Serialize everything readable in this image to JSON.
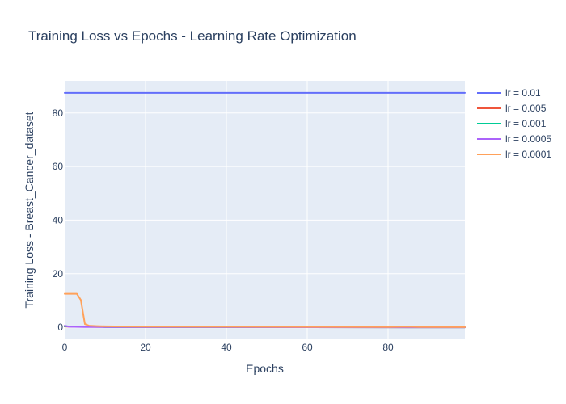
{
  "chart_data": {
    "type": "line",
    "title": "Training Loss vs Epochs - Learning Rate Optimization",
    "xlabel": "Epochs",
    "ylabel": "Training Loss - Breast_Cancer_dataset",
    "xlim": [
      0,
      99
    ],
    "ylim": [
      -4.5,
      92
    ],
    "xticks": [
      0,
      20,
      40,
      60,
      80
    ],
    "yticks": [
      0,
      20,
      40,
      60,
      80
    ],
    "grid": true,
    "legend_position": "top-right",
    "series": [
      {
        "name": "lr = 0.01",
        "color": "#636efa",
        "points": [
          [
            0,
            87.5
          ],
          [
            99,
            87.5
          ]
        ]
      },
      {
        "name": "lr = 0.005",
        "color": "#ef553b",
        "points": [
          [
            0,
            0.3
          ],
          [
            2,
            0.2
          ],
          [
            10,
            0.1
          ],
          [
            30,
            0.05
          ],
          [
            60,
            0.02
          ],
          [
            99,
            0.0
          ]
        ]
      },
      {
        "name": "lr = 0.001",
        "color": "#00cc96",
        "points": [
          [
            0,
            0.4
          ],
          [
            2,
            0.25
          ],
          [
            10,
            0.1
          ],
          [
            30,
            0.05
          ],
          [
            60,
            0.02
          ],
          [
            99,
            0.0
          ]
        ]
      },
      {
        "name": "lr = 0.0005",
        "color": "#ab63fa",
        "points": [
          [
            0,
            0.6
          ],
          [
            1,
            0.2
          ],
          [
            5,
            0.1
          ],
          [
            20,
            0.05
          ],
          [
            60,
            0.02
          ],
          [
            99,
            0.0
          ]
        ]
      },
      {
        "name": "lr = 0.0001",
        "color": "#ffa15a",
        "points": [
          [
            0,
            12.5
          ],
          [
            1,
            12.5
          ],
          [
            2,
            12.5
          ],
          [
            3,
            12.5
          ],
          [
            4,
            10.2
          ],
          [
            5,
            1.2
          ],
          [
            6,
            0.6
          ],
          [
            8,
            0.45
          ],
          [
            10,
            0.35
          ],
          [
            15,
            0.3
          ],
          [
            20,
            0.25
          ],
          [
            40,
            0.2
          ],
          [
            60,
            0.15
          ],
          [
            80,
            0.1
          ],
          [
            85,
            0.2
          ],
          [
            88,
            0.1
          ],
          [
            99,
            0.05
          ]
        ]
      }
    ]
  }
}
